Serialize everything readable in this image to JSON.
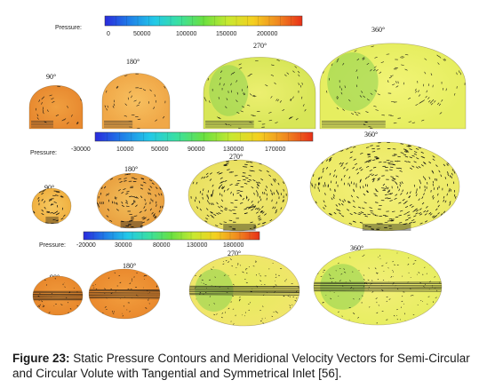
{
  "rows": [
    {
      "pressure_label": "Pressure:",
      "ticks": [
        "0",
        "50000",
        "100000",
        "150000",
        "200000"
      ],
      "panels": [
        {
          "angle": "90°",
          "shape": "semi",
          "fill": [
            "#e88a30",
            "#f0a040"
          ],
          "vec": "sparse"
        },
        {
          "angle": "180°",
          "shape": "semi",
          "fill": [
            "#f0a848",
            "#f7c060"
          ],
          "vec": "sparse"
        },
        {
          "angle": "270°",
          "shape": "semi",
          "fill": [
            "#d8e658",
            "#ecef70"
          ],
          "vec": "sparse"
        },
        {
          "angle": "360°",
          "shape": "semi",
          "fill": [
            "#e6ee60",
            "#f2f478"
          ],
          "vec": "sparse"
        }
      ]
    },
    {
      "pressure_label": "Pressure:",
      "ticks": [
        "-30000",
        "10000",
        "50000",
        "90000",
        "130000",
        "170000"
      ],
      "panels": [
        {
          "angle": "90°",
          "shape": "circle",
          "fill": [
            "#f0b040",
            "#f6c860"
          ],
          "vec": "dense"
        },
        {
          "angle": "180°",
          "shape": "circle",
          "fill": [
            "#e9a040",
            "#f3bf5a"
          ],
          "vec": "dense"
        },
        {
          "angle": "270°",
          "shape": "circle",
          "fill": [
            "#e9e060",
            "#f2ea74"
          ],
          "vec": "dense"
        },
        {
          "angle": "360°",
          "shape": "circle",
          "fill": [
            "#ecea66",
            "#f4f07c"
          ],
          "vec": "dense"
        }
      ]
    },
    {
      "pressure_label": "Pressure:",
      "ticks": [
        "-20000",
        "30000",
        "80000",
        "130000",
        "180000"
      ],
      "panels": [
        {
          "angle": "90°",
          "shape": "sym",
          "fill": [
            "#e8882c",
            "#f09a3c"
          ],
          "vec": "sym"
        },
        {
          "angle": "180°",
          "shape": "sym",
          "fill": [
            "#ea8a2e",
            "#f29e3e"
          ],
          "vec": "sym"
        },
        {
          "angle": "270°",
          "shape": "sym",
          "fill": [
            "#f0e66a",
            "#e6ec5e"
          ],
          "vec": "sym"
        },
        {
          "angle": "360°",
          "shape": "sym",
          "fill": [
            "#e8ee62",
            "#f2ee78"
          ],
          "vec": "sym"
        }
      ]
    }
  ],
  "caption": {
    "label": "Figure 23:",
    "text": " Static Pressure Contours and Meridional Velocity Vectors for Semi-Circular and Circular Volute with Tangential and Symmetrical Inlet [56]."
  },
  "colormap": [
    "#2a2adc",
    "#1f7fe8",
    "#22c8e8",
    "#3ae0a0",
    "#6ae040",
    "#c8e830",
    "#f4d020",
    "#f08a20",
    "#e83018"
  ]
}
